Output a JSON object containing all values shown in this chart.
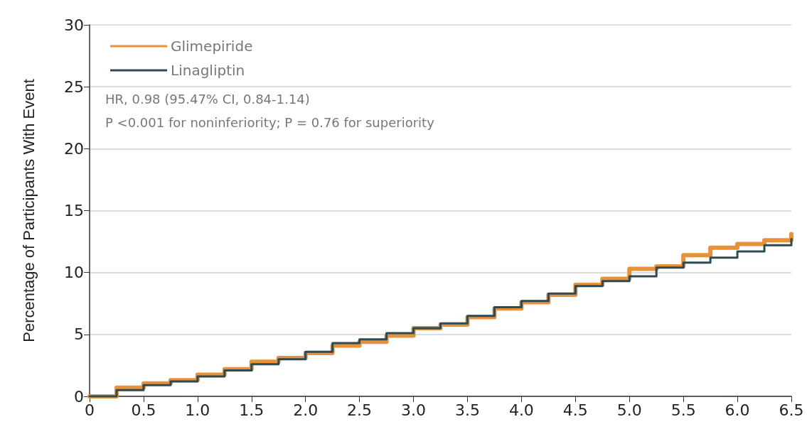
{
  "chart_data": {
    "type": "step",
    "ylabel": "Percentage of Participants With Event",
    "x": [
      0,
      0.25,
      0.5,
      0.75,
      1.0,
      1.25,
      1.5,
      1.75,
      2.0,
      2.25,
      2.5,
      2.75,
      3.0,
      3.25,
      3.5,
      3.75,
      4.0,
      4.25,
      4.5,
      4.75,
      5.0,
      5.25,
      5.5,
      5.75,
      6.0,
      6.25,
      6.5
    ],
    "series": [
      {
        "name": "Glimepiride",
        "color": "#e8913a",
        "values": [
          0,
          0.7,
          1.05,
          1.3,
          1.75,
          2.2,
          2.8,
          3.1,
          3.5,
          4.1,
          4.4,
          4.9,
          5.5,
          5.8,
          6.4,
          7.1,
          7.6,
          8.2,
          9.0,
          9.5,
          10.3,
          10.5,
          11.4,
          12.0,
          12.3,
          12.6,
          13.1
        ]
      },
      {
        "name": "Linagliptin",
        "color": "#2f4a50",
        "values": [
          0,
          0.5,
          0.9,
          1.2,
          1.6,
          2.1,
          2.6,
          3.0,
          3.6,
          4.3,
          4.6,
          5.1,
          5.5,
          5.9,
          6.5,
          7.2,
          7.7,
          8.3,
          8.9,
          9.3,
          9.7,
          10.4,
          10.8,
          11.2,
          11.7,
          12.2,
          12.7
        ]
      }
    ],
    "xlim": [
      0,
      6.5
    ],
    "xticks": [
      0,
      0.5,
      {
        "value": 1,
        "label": "1.0"
      },
      1.5,
      {
        "value": 2,
        "label": "2.0"
      },
      2.5,
      {
        "value": 3,
        "label": "3.0"
      },
      3.5,
      {
        "value": 4,
        "label": "4.0"
      },
      4.5,
      {
        "value": 5,
        "label": "5.0"
      },
      5.5,
      {
        "value": 6,
        "label": "6.0"
      },
      6.5
    ],
    "ylim": [
      0,
      30
    ],
    "yticks": [
      0,
      5,
      10,
      15,
      20,
      25,
      30
    ],
    "grid": "y",
    "legend": "top left",
    "marker": "none",
    "line_style": "solid",
    "annotations": [
      "HR, 0.98 (95.47% CI, 0.84-1.14)",
      "P <0.001 for noninferiority; P = 0.76 for superiority"
    ]
  }
}
